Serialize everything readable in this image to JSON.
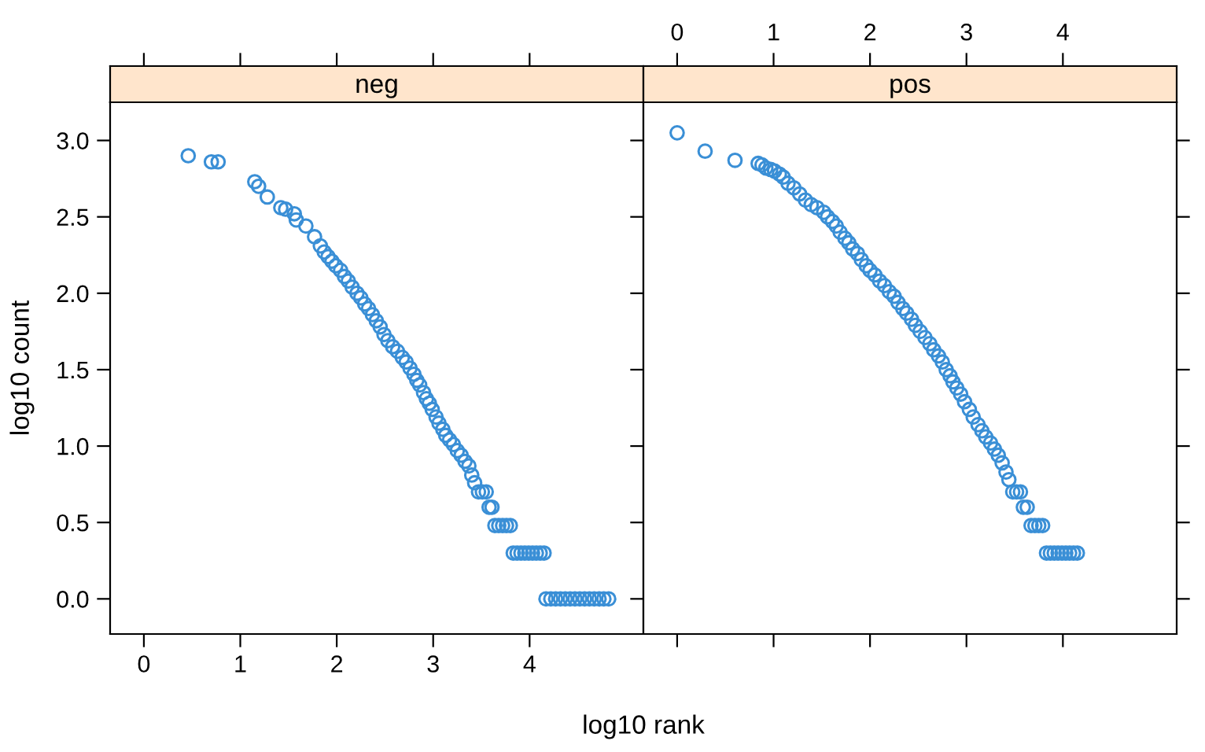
{
  "chart_data": [
    {
      "type": "scatter",
      "title": "neg",
      "xlabel": "log10 rank",
      "ylabel": "log10 count",
      "marker": "circle",
      "grid": false,
      "xlim": [
        -0.35,
        5.18
      ],
      "xticks": [
        0,
        1,
        2,
        3,
        4
      ],
      "ylim": [
        -0.23,
        3.25
      ],
      "yticks": [
        {
          "value": 0,
          "label": "0.0"
        },
        0.5,
        {
          "value": 1,
          "label": "1.0"
        },
        1.5,
        {
          "value": 2,
          "label": "2.0"
        },
        2.5,
        {
          "value": 3,
          "label": "3.0"
        }
      ],
      "series": [
        {
          "color": "#3a8fd6",
          "x": [
            0.46,
            0.7,
            0.77,
            1.15,
            1.19,
            1.28,
            1.42,
            1.47,
            1.56,
            1.58,
            1.68,
            1.77,
            1.83,
            1.87,
            1.91,
            1.95,
            1.99,
            2.04,
            2.08,
            2.12,
            2.16,
            2.21,
            2.25,
            2.29,
            2.33,
            2.37,
            2.41,
            2.45,
            2.49,
            2.53,
            2.58,
            2.63,
            2.68,
            2.72,
            2.76,
            2.8,
            2.83,
            2.86,
            2.9,
            2.93,
            2.96,
            2.99,
            3.03,
            3.06,
            3.1,
            3.13,
            3.17,
            3.21,
            3.25,
            3.29,
            3.33,
            3.37,
            3.4,
            3.43,
            3.47,
            3.51,
            3.55,
            3.58,
            3.61,
            3.64,
            3.68,
            3.72,
            3.76,
            3.8,
            3.83,
            3.87,
            3.91,
            3.95,
            3.99,
            4.03,
            4.07,
            4.11,
            4.15,
            4.17,
            4.22,
            4.27,
            4.32,
            4.37,
            4.42,
            4.47,
            4.52,
            4.57,
            4.62,
            4.67,
            4.72,
            4.77,
            4.82
          ],
          "values": [
            2.9,
            2.86,
            2.86,
            2.73,
            2.7,
            2.63,
            2.56,
            2.55,
            2.52,
            2.48,
            2.44,
            2.37,
            2.31,
            2.27,
            2.24,
            2.21,
            2.18,
            2.15,
            2.11,
            2.08,
            2.04,
            2.0,
            1.97,
            1.93,
            1.9,
            1.86,
            1.82,
            1.78,
            1.73,
            1.69,
            1.65,
            1.62,
            1.58,
            1.55,
            1.51,
            1.47,
            1.43,
            1.4,
            1.35,
            1.31,
            1.28,
            1.24,
            1.19,
            1.15,
            1.11,
            1.07,
            1.04,
            1.01,
            0.97,
            0.94,
            0.9,
            0.87,
            0.81,
            0.76,
            0.7,
            0.7,
            0.7,
            0.6,
            0.6,
            0.48,
            0.48,
            0.48,
            0.48,
            0.48,
            0.3,
            0.3,
            0.3,
            0.3,
            0.3,
            0.3,
            0.3,
            0.3,
            0.3,
            0.0,
            0.0,
            0.0,
            0.0,
            0.0,
            0.0,
            0.0,
            0.0,
            0.0,
            0.0,
            0.0,
            0.0,
            0.0,
            0.0
          ]
        }
      ]
    },
    {
      "type": "scatter",
      "title": "pos",
      "marker": "circle",
      "grid": false,
      "tick_labels": "x",
      "xlim": [
        -0.35,
        5.18
      ],
      "xticks": [
        0,
        1,
        2,
        3,
        4
      ],
      "ylim": [
        -0.23,
        3.25
      ],
      "yticks": [
        0,
        0.5,
        1,
        1.5,
        2,
        2.5,
        3
      ],
      "series": [
        {
          "color": "#3a8fd6",
          "x": [
            0,
            0.29,
            0.6,
            0.84,
            0.88,
            0.92,
            0.97,
            1.01,
            1.06,
            1.1,
            1.15,
            1.21,
            1.27,
            1.33,
            1.39,
            1.45,
            1.52,
            1.56,
            1.61,
            1.65,
            1.69,
            1.74,
            1.78,
            1.82,
            1.87,
            1.91,
            1.96,
            2.0,
            2.05,
            2.1,
            2.15,
            2.2,
            2.25,
            2.29,
            2.34,
            2.38,
            2.43,
            2.47,
            2.52,
            2.57,
            2.62,
            2.66,
            2.71,
            2.75,
            2.79,
            2.83,
            2.86,
            2.9,
            2.94,
            2.98,
            3.03,
            3.07,
            3.12,
            3.16,
            3.2,
            3.25,
            3.29,
            3.33,
            3.37,
            3.41,
            3.44,
            3.48,
            3.52,
            3.56,
            3.59,
            3.63,
            3.67,
            3.71,
            3.75,
            3.79,
            3.83,
            3.87,
            3.91,
            3.95,
            3.99,
            4.03,
            4.07,
            4.11,
            4.15
          ],
          "values": [
            3.05,
            2.93,
            2.87,
            2.85,
            2.84,
            2.82,
            2.81,
            2.8,
            2.78,
            2.76,
            2.72,
            2.69,
            2.65,
            2.61,
            2.58,
            2.56,
            2.53,
            2.5,
            2.47,
            2.44,
            2.4,
            2.36,
            2.33,
            2.29,
            2.26,
            2.22,
            2.18,
            2.15,
            2.12,
            2.08,
            2.05,
            2.01,
            1.98,
            1.94,
            1.9,
            1.87,
            1.83,
            1.79,
            1.75,
            1.71,
            1.67,
            1.63,
            1.59,
            1.55,
            1.5,
            1.46,
            1.42,
            1.38,
            1.34,
            1.29,
            1.24,
            1.19,
            1.14,
            1.1,
            1.06,
            1.02,
            0.98,
            0.94,
            0.89,
            0.83,
            0.78,
            0.7,
            0.7,
            0.7,
            0.6,
            0.6,
            0.48,
            0.48,
            0.48,
            0.48,
            0.3,
            0.3,
            0.3,
            0.3,
            0.3,
            0.3,
            0.3,
            0.3,
            0.3
          ]
        }
      ]
    }
  ]
}
